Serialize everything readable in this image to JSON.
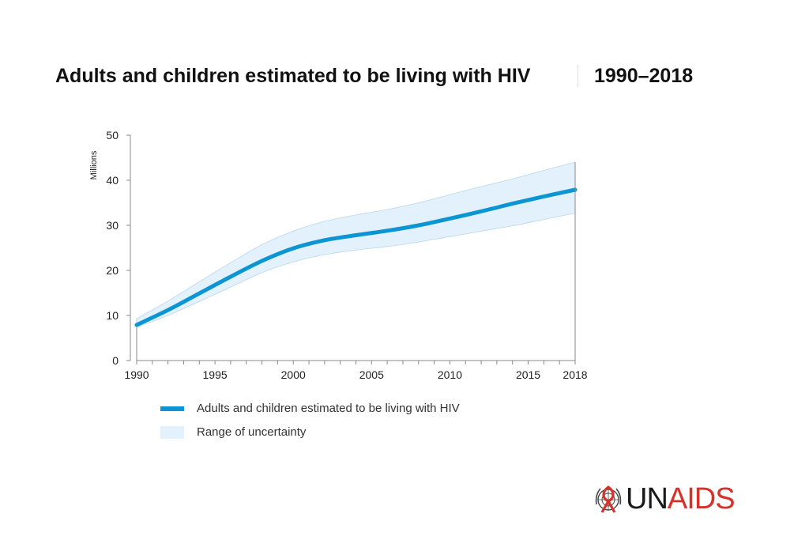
{
  "header": {
    "title": "Adults and children estimated to be living with HIV",
    "years": "1990–2018"
  },
  "colors": {
    "line": "#0c95d3",
    "band": "#e2f1fb",
    "band_edge": "#b9d7ea",
    "axis": "#8a8a8a",
    "logo_red": "#d6322a"
  },
  "chart_data": {
    "type": "area",
    "title": "Adults and children estimated to be living with HIV 1990–2018",
    "xlabel": "",
    "ylabel": "Millions",
    "xlim": [
      1990,
      2018
    ],
    "ylim": [
      0,
      50
    ],
    "y_ticks": [
      0,
      10,
      20,
      30,
      40,
      50
    ],
    "x_tick_labels": [
      1990,
      1995,
      2000,
      2005,
      2010,
      2015,
      2018
    ],
    "x_minor_ticks": [
      1990,
      1991,
      1992,
      1993,
      1994,
      1995,
      1996,
      1997,
      1998,
      1999,
      2000,
      2001,
      2002,
      2003,
      2004,
      2005,
      2006,
      2007,
      2008,
      2009,
      2010,
      2011,
      2012,
      2013,
      2014,
      2015,
      2016,
      2017,
      2018
    ],
    "x": [
      1990,
      1992,
      1994,
      1996,
      1998,
      2000,
      2002,
      2004,
      2006,
      2008,
      2010,
      2012,
      2014,
      2016,
      2018
    ],
    "series": [
      {
        "name": "Adults and children estimated to be living with HIV",
        "values": [
          7.9,
          11.2,
          14.9,
          18.6,
          22.1,
          24.9,
          26.7,
          27.8,
          28.8,
          30.0,
          31.5,
          33.1,
          34.8,
          36.4,
          37.9
        ]
      },
      {
        "name": "Range of uncertainty (upper)",
        "values": [
          9.3,
          13.2,
          17.5,
          21.7,
          25.7,
          28.7,
          30.9,
          32.3,
          33.5,
          35.0,
          36.8,
          38.6,
          40.3,
          42.2,
          44.0
        ]
      },
      {
        "name": "Range of uncertainty (lower)",
        "values": [
          7.4,
          10.0,
          13.1,
          16.3,
          19.5,
          21.9,
          23.5,
          24.5,
          25.3,
          26.3,
          27.5,
          28.7,
          29.9,
          31.3,
          32.7
        ]
      }
    ],
    "legend": [
      {
        "label": "Adults and children estimated to be living with HIV",
        "kind": "line"
      },
      {
        "label": "Range of uncertainty",
        "kind": "band"
      }
    ],
    "legend_position": "bottom-left"
  },
  "logo": {
    "text_un": "UN",
    "text_aids": "AIDS"
  }
}
